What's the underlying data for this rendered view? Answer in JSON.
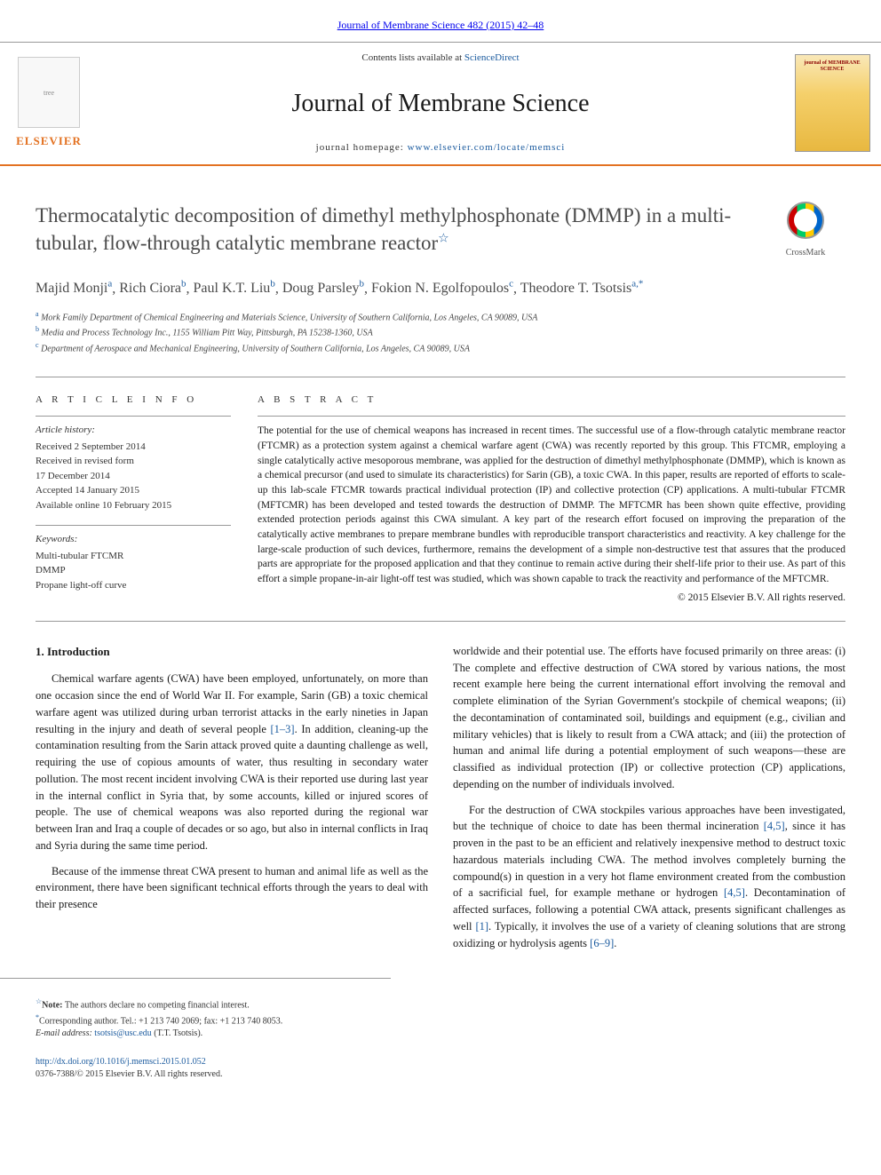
{
  "journalRef": "Journal of Membrane Science 482 (2015) 42–48",
  "header": {
    "contentsPrefix": "Contents lists available at ",
    "contentsLink": "ScienceDirect",
    "journalName": "Journal of Membrane Science",
    "homepagePrefix": "journal homepage: ",
    "homepageLink": "www.elsevier.com/locate/memsci",
    "elsevier": "ELSEVIER",
    "coverTitle": "journal of MEMBRANE SCIENCE"
  },
  "crossmark": "CrossMark",
  "title": "Thermocatalytic decomposition of dimethyl methylphosphonate (DMMP) in a multi-tubular, flow-through catalytic membrane reactor",
  "titleStar": "☆",
  "authors": [
    {
      "name": "Majid Monji",
      "sup": "a"
    },
    {
      "name": "Rich Ciora",
      "sup": "b"
    },
    {
      "name": "Paul K.T. Liu",
      "sup": "b"
    },
    {
      "name": "Doug Parsley",
      "sup": "b"
    },
    {
      "name": "Fokion N. Egolfopoulos",
      "sup": "c"
    },
    {
      "name": "Theodore T. Tsotsis",
      "sup": "a,*"
    }
  ],
  "affiliations": [
    {
      "sup": "a",
      "text": "Mork Family Department of Chemical Engineering and Materials Science, University of Southern California, Los Angeles, CA 90089, USA"
    },
    {
      "sup": "b",
      "text": "Media and Process Technology Inc., 1155 William Pitt Way, Pittsburgh, PA 15238-1360, USA"
    },
    {
      "sup": "c",
      "text": "Department of Aerospace and Mechanical Engineering, University of Southern California, Los Angeles, CA 90089, USA"
    }
  ],
  "articleInfo": {
    "heading": "A R T I C L E  I N F O",
    "historyLabel": "Article history:",
    "history": [
      "Received 2 September 2014",
      "Received in revised form",
      "17 December 2014",
      "Accepted 14 January 2015",
      "Available online 10 February 2015"
    ],
    "keywordsLabel": "Keywords:",
    "keywords": [
      "Multi-tubular FTCMR",
      "DMMP",
      "Propane light-off curve"
    ]
  },
  "abstract": {
    "heading": "A B S T R A C T",
    "text": "The potential for the use of chemical weapons has increased in recent times. The successful use of a flow-through catalytic membrane reactor (FTCMR) as a protection system against a chemical warfare agent (CWA) was recently reported by this group. This FTCMR, employing a single catalytically active mesoporous membrane, was applied for the destruction of dimethyl methylphosphonate (DMMP), which is known as a chemical precursor (and used to simulate its characteristics) for Sarin (GB), a toxic CWA. In this paper, results are reported of efforts to scale-up this lab-scale FTCMR towards practical individual protection (IP) and collective protection (CP) applications. A multi-tubular FTCMR (MFTCMR) has been developed and tested towards the destruction of DMMP. The MFTCMR has been shown quite effective, providing extended protection periods against this CWA simulant. A key part of the research effort focused on improving the preparation of the catalytically active membranes to prepare membrane bundles with reproducible transport characteristics and reactivity. A key challenge for the large-scale production of such devices, furthermore, remains the development of a simple non-destructive test that assures that the produced parts are appropriate for the proposed application and that they continue to remain active during their shelf-life prior to their use. As part of this effort a simple propane-in-air light-off test was studied, which was shown capable to track the reactivity and performance of the MFTCMR.",
    "copyright": "© 2015 Elsevier B.V. All rights reserved."
  },
  "section1": {
    "heading": "1. Introduction",
    "p1a": "Chemical warfare agents (CWA) have been employed, unfortunately, on more than one occasion since the end of World War II. For example, Sarin (GB) a toxic chemical warfare agent was utilized during urban terrorist attacks in the early nineties in Japan resulting in the injury and death of several people ",
    "ref1": "[1–3]",
    "p1b": ". In addition, cleaning-up the contamination resulting from the Sarin attack proved quite a daunting challenge as well, requiring the use of copious amounts of water, thus resulting in secondary water pollution. The most recent incident involving CWA is their reported use during last year in the internal conflict in Syria that, by some accounts, killed or injured scores of people. The use of chemical weapons was also reported during the regional war between Iran and Iraq a couple of decades or so ago, but also in internal conflicts in Iraq and Syria during the same time period.",
    "p2": "Because of the immense threat CWA present to human and animal life as well as the environment, there have been significant technical efforts through the years to deal with their presence",
    "p3": "worldwide and their potential use. The efforts have focused primarily on three areas: (i) The complete and effective destruction of CWA stored by various nations, the most recent example here being the current international effort involving the removal and complete elimination of the Syrian Government's stockpile of chemical weapons; (ii) the decontamination of contaminated soil, buildings and equipment (e.g., civilian and military vehicles) that is likely to result from a CWA attack; and (iii) the protection of human and animal life during a potential employment of such weapons—these are classified as individual protection (IP) or collective protection (CP) applications, depending on the number of individuals involved.",
    "p4a": "For the destruction of CWA stockpiles various approaches have been investigated, but the technique of choice to date has been thermal incineration ",
    "ref45a": "[4,5]",
    "p4b": ", since it has proven in the past to be an efficient and relatively inexpensive method to destruct toxic hazardous materials including CWA. The method involves completely burning the compound(s) in question in a very hot flame environment created from the combustion of a sacrificial fuel, for example methane or hydrogen ",
    "ref45b": "[4,5]",
    "p4c": ". Decontamination of affected surfaces, following a potential CWA attack, presents significant challenges as well ",
    "ref1b": "[1]",
    "p4d": ". Typically, it involves the use of a variety of cleaning solutions that are strong oxidizing or hydrolysis agents ",
    "ref69": "[6–9]",
    "p4e": "."
  },
  "footnotes": {
    "note": "Note: The authors declare no competing financial interest.",
    "corr": "Corresponding author. Tel.: +1 213 740 2069; fax: +1 213 740 8053.",
    "emailLabel": "E-mail address: ",
    "email": "tsotsis@usc.edu",
    "emailSuffix": " (T.T. Tsotsis).",
    "starSup": "☆",
    "starSup2": "*"
  },
  "doi": {
    "link": "http://dx.doi.org/10.1016/j.memsci.2015.01.052",
    "issn": "0376-7388/© 2015 Elsevier B.V. All rights reserved."
  },
  "colors": {
    "link": "#1a5a9e",
    "accent": "#e37222",
    "text": "#1a1a1a",
    "grayText": "#4a4a4a"
  }
}
